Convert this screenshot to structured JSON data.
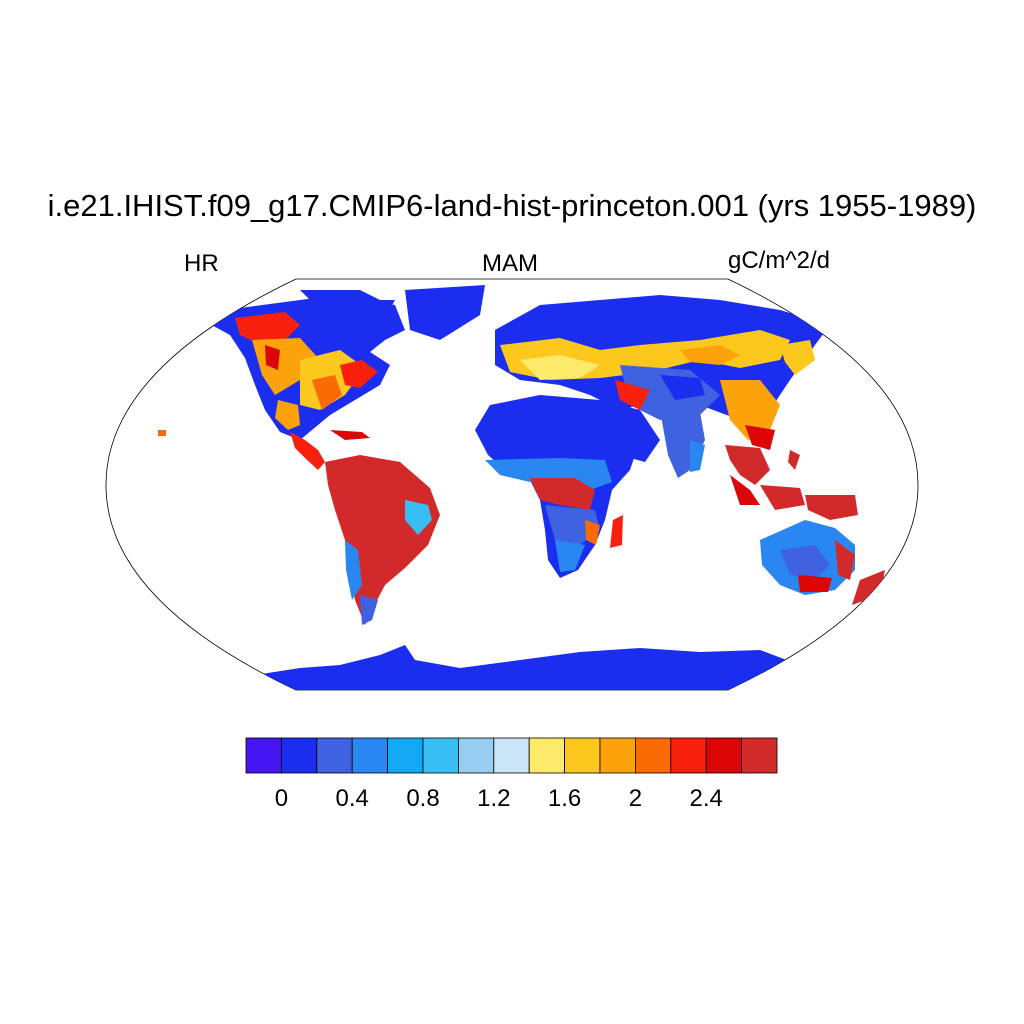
{
  "title": "i.e21.IHIST.f09_g17.CMIP6-land-hist-princeton.001 (yrs 1955-1989)",
  "left_label": "HR",
  "center_label": "MAM",
  "right_label": "gC/m^2/d",
  "colorbar": {
    "colors": [
      "#4516f2",
      "#1b2ef0",
      "#3e62e0",
      "#2a86f0",
      "#13a8f5",
      "#38bef2",
      "#96cdf0",
      "#c8e4f6",
      "#fde96a",
      "#fdc81e",
      "#fca30c",
      "#fb6b05",
      "#f9200e",
      "#dc0606",
      "#d22a2a"
    ],
    "tick_labels": [
      "0",
      "0.4",
      "0.8",
      "1.2",
      "1.6",
      "2",
      "2.4"
    ]
  }
}
